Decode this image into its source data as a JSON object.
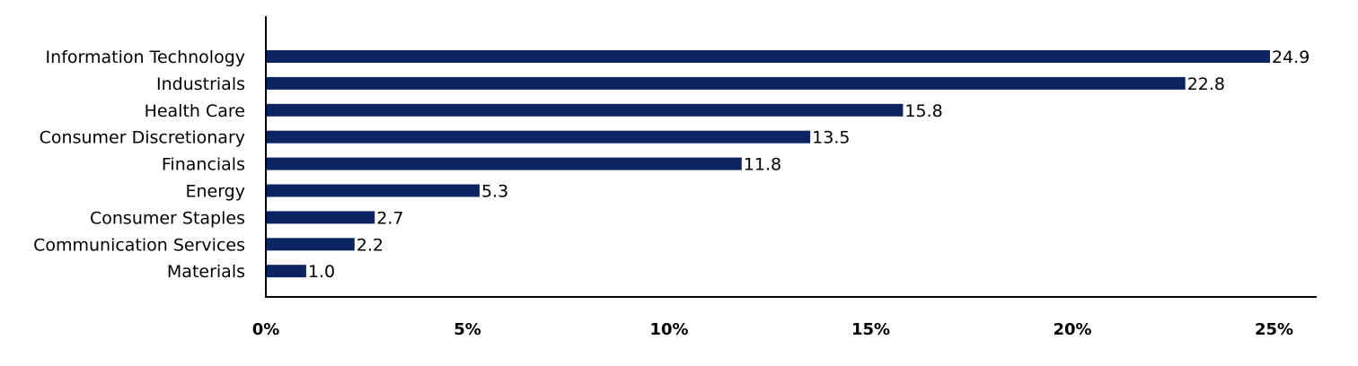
{
  "chart_data": {
    "type": "bar",
    "orientation": "horizontal",
    "categories": [
      "Information Technology",
      "Industrials",
      "Health Care",
      "Consumer Discretionary",
      "Financials",
      "Energy",
      "Consumer Staples",
      "Communication Services",
      "Materials"
    ],
    "values": [
      24.9,
      22.8,
      15.8,
      13.5,
      11.8,
      5.3,
      2.7,
      2.2,
      1.0
    ],
    "value_labels": [
      "24.9",
      "22.8",
      "15.8",
      "13.5",
      "11.8",
      "5.3",
      "2.7",
      "2.2",
      "1.0"
    ],
    "x_ticks": [
      0,
      5,
      10,
      15,
      20,
      25
    ],
    "x_tick_labels": [
      "0%",
      "5%",
      "10%",
      "15%",
      "20%",
      "25%"
    ],
    "xlim": [
      0,
      26
    ],
    "title": "",
    "xlabel": "",
    "ylabel": "",
    "grid": false,
    "legend": "none",
    "bar_color": "#0c2461"
  }
}
